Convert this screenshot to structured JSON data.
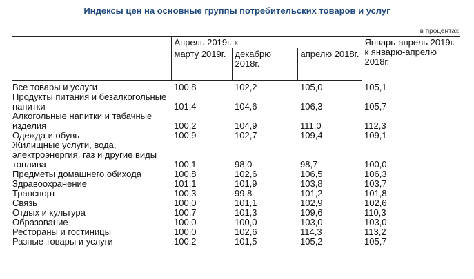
{
  "title": "Индексы цен на основные группы потребительских товаров и услуг",
  "units": "в процентах",
  "header": {
    "group_label": "Апрель 2019г. к",
    "col_march": "марту 2019г.",
    "col_december": "декабрю 2018г.",
    "col_april": "апрелю 2018г.",
    "col_jan_april": "Январь-апрель 2019г. к январю-апрелю 2018г."
  },
  "rows": [
    {
      "name": "Все товары и услуги",
      "v1": "100,8",
      "v2": "102,2",
      "v3": "105,0",
      "v4": "105,1"
    },
    {
      "name": "Продукты питания и безалкогольные напитки",
      "v1": "101,4",
      "v2": "104,6",
      "v3": "106,3",
      "v4": "105,7"
    },
    {
      "name": "Алкогольные напитки и табачные изделия",
      "v1": "100,2",
      "v2": "104,9",
      "v3": "111,0",
      "v4": "112,3"
    },
    {
      "name": "Одежда и обувь",
      "v1": "100,9",
      "v2": "102,7",
      "v3": "109,4",
      "v4": "109,1"
    },
    {
      "name": "Жилищные услуги, вода, электроэнергия, газ и другие виды топлива",
      "v1": "100,1",
      "v2": "98,0",
      "v3": "98,7",
      "v4": "100,0"
    },
    {
      "name": "Предметы домашнего обихода",
      "v1": "100,8",
      "v2": "102,6",
      "v3": "106,5",
      "v4": "106,3"
    },
    {
      "name": "Здравоохранение",
      "v1": "101,1",
      "v2": "101,9",
      "v3": "103,8",
      "v4": "103,7"
    },
    {
      "name": "Транспорт",
      "v1": "100,3",
      "v2": "99,8",
      "v3": "101,2",
      "v4": "101,8"
    },
    {
      "name": "Связь",
      "v1": "100,0",
      "v2": "101,1",
      "v3": "102,9",
      "v4": "102,6"
    },
    {
      "name": "Отдых и культура",
      "v1": "100,7",
      "v2": "101,3",
      "v3": "109,6",
      "v4": "110,3"
    },
    {
      "name": "Образование",
      "v1": "100,0",
      "v2": "100,0",
      "v3": "103,0",
      "v4": "103,0"
    },
    {
      "name": "Рестораны и гостиницы",
      "v1": "100,0",
      "v2": "102,6",
      "v3": "114,3",
      "v4": "113,2"
    },
    {
      "name": "Разные товары и услуги",
      "v1": "100,2",
      "v2": "101,5",
      "v3": "105,2",
      "v4": "105,7"
    }
  ]
}
